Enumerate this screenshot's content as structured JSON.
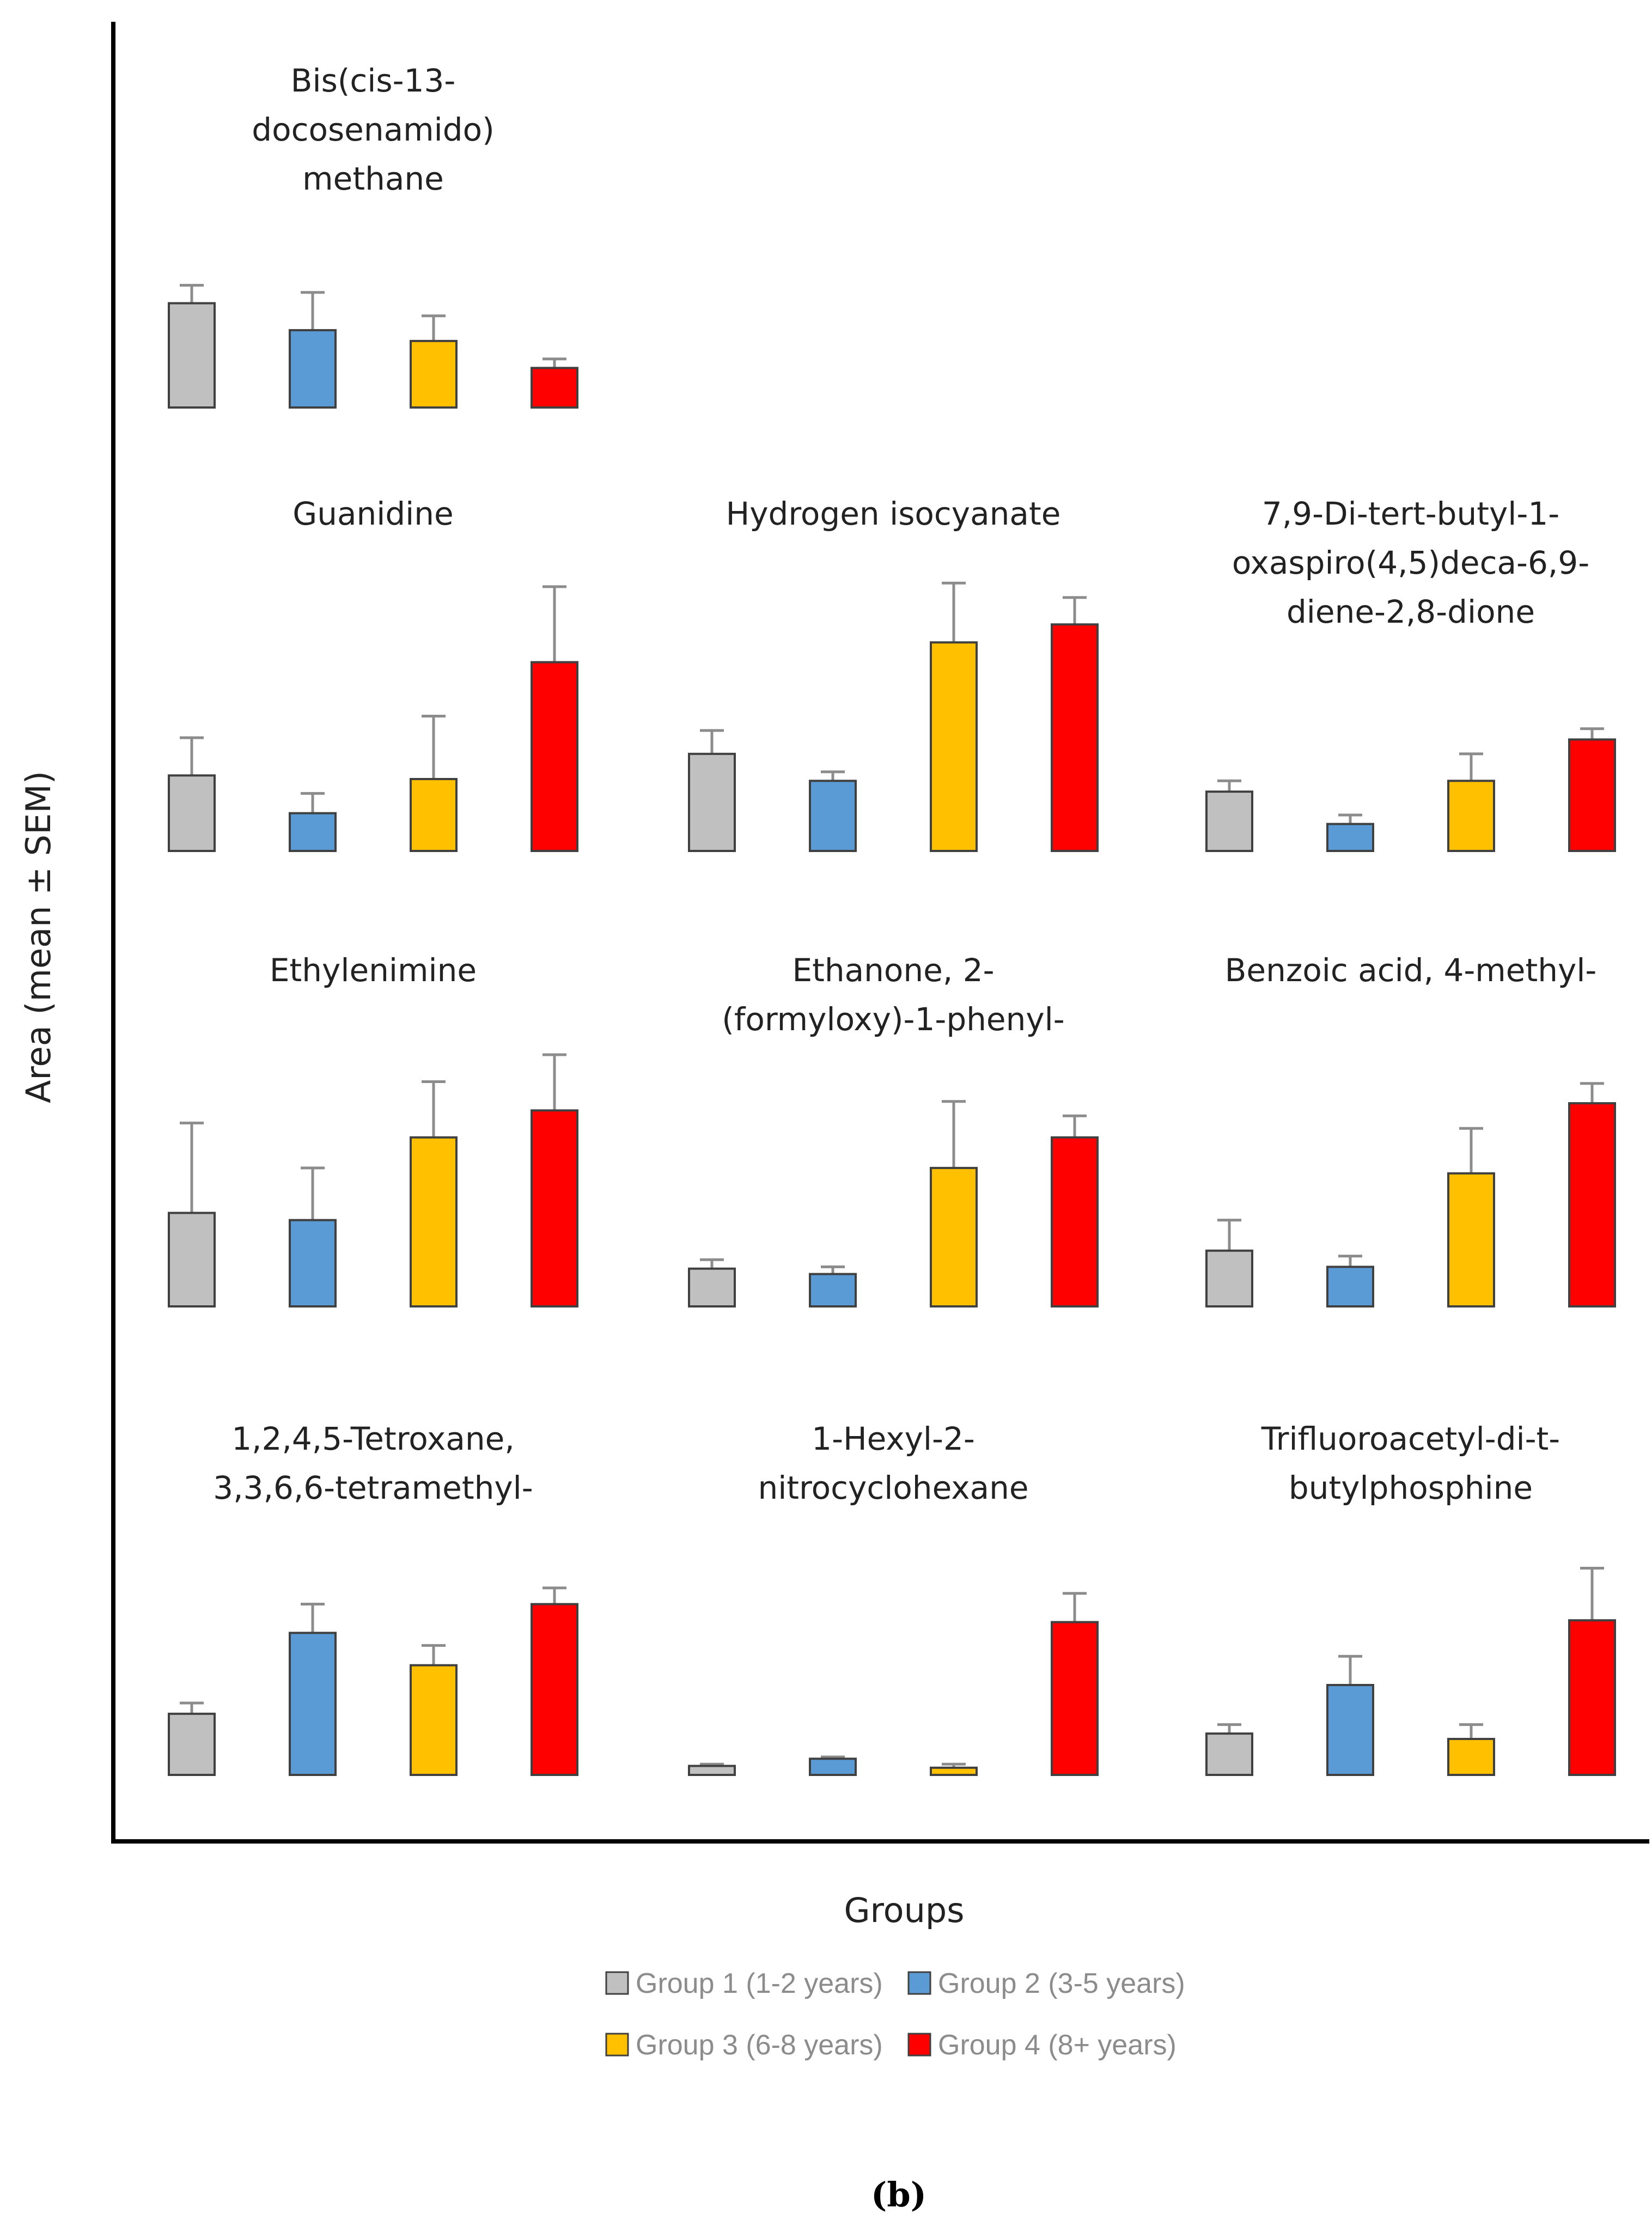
{
  "chart_data": {
    "type": "bar",
    "ylabel": "Area (mean ± SEM)",
    "xlabel": "Groups",
    "caption": "(b)",
    "grid": false,
    "legend_position": "bottom",
    "series": [
      {
        "name": "Group 1 (1-2 years)",
        "color": "#c0c0c0"
      },
      {
        "name": "Group 2 (3-5 years)",
        "color": "#5b9bd5"
      },
      {
        "name": "Group 3 (6-8 years)",
        "color": "#ffc000"
      },
      {
        "name": "Group 4 (8+ years)",
        "color": "#ff0000"
      }
    ],
    "panels": [
      {
        "title": [
          "Bis(cis-13-",
          "docosenamido)",
          "methane"
        ],
        "values": [
          0.58,
          0.43,
          0.37,
          0.22
        ],
        "errors": [
          0.1,
          0.21,
          0.14,
          0.05
        ]
      },
      {
        "title": [
          "Guanidine"
        ],
        "values": [
          0.42,
          0.21,
          0.4,
          1.05
        ],
        "errors": [
          0.21,
          0.11,
          0.35,
          0.42
        ]
      },
      {
        "title": [
          "Hydrogen isocyanate"
        ],
        "values": [
          0.54,
          0.39,
          1.16,
          1.26
        ],
        "errors": [
          0.13,
          0.05,
          0.33,
          0.15
        ]
      },
      {
        "title": [
          "7,9-Di-tert-butyl-1-",
          "oxaspiro(4,5)deca-6,9-",
          "diene-2,8-dione"
        ],
        "values": [
          0.33,
          0.15,
          0.39,
          0.62
        ],
        "errors": [
          0.06,
          0.05,
          0.15,
          0.06
        ]
      },
      {
        "title": [
          "Ethylenimine"
        ],
        "values": [
          0.52,
          0.48,
          0.94,
          1.09
        ],
        "errors": [
          0.5,
          0.29,
          0.31,
          0.31
        ]
      },
      {
        "title": [
          "Ethanone, 2-",
          "(formyloxy)-1-phenyl-"
        ],
        "values": [
          0.21,
          0.18,
          0.77,
          0.94
        ],
        "errors": [
          0.05,
          0.04,
          0.37,
          0.12
        ]
      },
      {
        "title": [
          "Benzoic acid, 4-methyl-"
        ],
        "values": [
          0.31,
          0.22,
          0.74,
          1.13
        ],
        "errors": [
          0.17,
          0.06,
          0.25,
          0.11
        ]
      },
      {
        "title": [
          "1,2,4,5-Tetroxane,",
          "3,3,6,6-tetramethyl-"
        ],
        "values": [
          0.34,
          0.79,
          0.61,
          0.95
        ],
        "errors": [
          0.06,
          0.16,
          0.11,
          0.09
        ]
      },
      {
        "title": [
          "1-Hexyl-2-",
          "nitrocyclohexane"
        ],
        "values": [
          0.05,
          0.09,
          0.04,
          0.85
        ],
        "errors": [
          0.01,
          0.01,
          0.02,
          0.16
        ]
      },
      {
        "title": [
          "Trifluoroacetyl-di-t-",
          "butylphosphine"
        ],
        "values": [
          0.23,
          0.5,
          0.2,
          0.86
        ],
        "errors": [
          0.05,
          0.16,
          0.08,
          0.29
        ]
      }
    ]
  }
}
